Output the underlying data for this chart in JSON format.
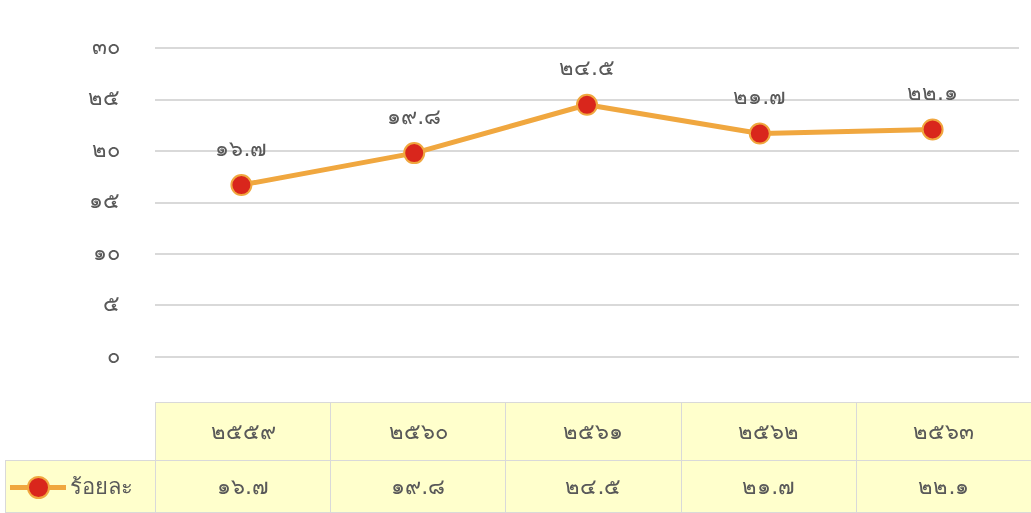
{
  "chart_data": {
    "type": "line",
    "categories": [
      "๒๕๕๙",
      "๒๕๖๐",
      "๒๕๖๑",
      "๒๕๖๒",
      "๒๕๖๓"
    ],
    "series": [
      {
        "name": "ร้อยละ",
        "color": "#f0a73f",
        "values": [
          16.7,
          19.8,
          24.5,
          21.7,
          22.1
        ],
        "value_labels": [
          "๑๖.๗",
          "๑๙.๘",
          "๒๔.๕",
          "๒๑.๗",
          "๒๒.๑"
        ]
      }
    ],
    "ylim": [
      0,
      30
    ],
    "yticks": [
      {
        "value": 0,
        "label": "๐"
      },
      {
        "value": 5,
        "label": "๕"
      },
      {
        "value": 10,
        "label": "๑๐"
      },
      {
        "value": 15,
        "label": "๑๕"
      },
      {
        "value": 20,
        "label": "๒๐"
      },
      {
        "value": 25,
        "label": "๒๕"
      },
      {
        "value": 30,
        "label": "๓๐"
      }
    ],
    "grid": "y",
    "legend": "bottom left",
    "marker": "circle",
    "line_style": "solid"
  }
}
